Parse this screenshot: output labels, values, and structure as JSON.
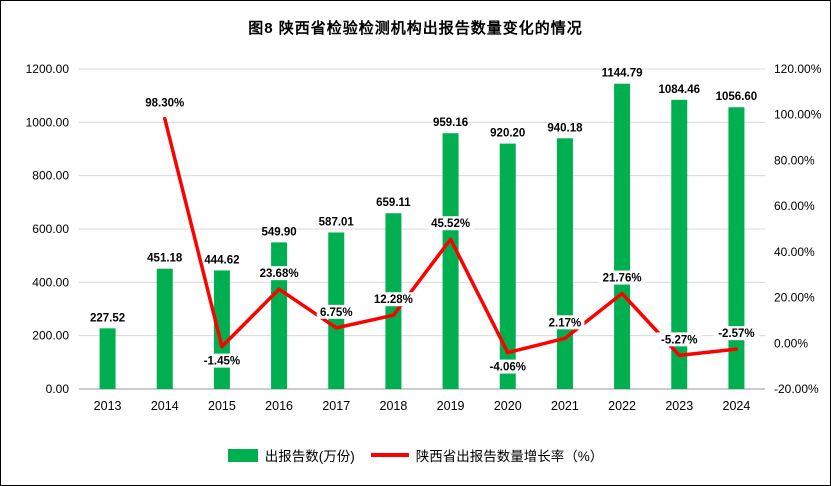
{
  "title": "图8  陕西省检验检测机构出报告数量变化的情况",
  "legend": {
    "bar_label": "出报告数(万份)",
    "line_label": "陕西省出报告数量增长率（%）"
  },
  "colors": {
    "bar": "#00B050",
    "line": "#FF0000",
    "grid": "#D9D9D9",
    "axis_line": "#9a9a9a",
    "label": "#000000",
    "background": "#FFFFFF",
    "border": "#000000"
  },
  "chart_data": {
    "type": "bar",
    "combo": "bar+line",
    "title": "图8  陕西省检验检测机构出报告数量变化的情况",
    "categories": [
      "2013",
      "2014",
      "2015",
      "2016",
      "2017",
      "2018",
      "2019",
      "2020",
      "2021",
      "2022",
      "2023",
      "2024"
    ],
    "series": [
      {
        "name": "出报告数(万份)",
        "type": "bar",
        "axis": "left",
        "values": [
          227.52,
          451.18,
          444.62,
          549.9,
          587.01,
          659.11,
          959.16,
          920.2,
          940.18,
          1144.79,
          1084.46,
          1056.6
        ]
      },
      {
        "name": "陕西省出报告数量增长率（%）",
        "type": "line",
        "axis": "right",
        "values": [
          null,
          98.3,
          -1.45,
          23.68,
          6.75,
          12.28,
          45.52,
          -4.06,
          2.17,
          21.76,
          -5.27,
          -2.57
        ]
      }
    ],
    "left_axis": {
      "min": 0,
      "max": 1200,
      "step": 200,
      "tick_labels": [
        "0.00",
        "200.00",
        "400.00",
        "600.00",
        "800.00",
        "1000.00",
        "1200.00"
      ]
    },
    "right_axis": {
      "min": -20,
      "max": 120,
      "step": 20,
      "tick_labels": [
        "-20.00%",
        "0.00%",
        "20.00%",
        "40.00%",
        "60.00%",
        "80.00%",
        "100.00%",
        "120.00%"
      ]
    },
    "grid": true,
    "legend_position": "bottom",
    "data_labels": true
  }
}
